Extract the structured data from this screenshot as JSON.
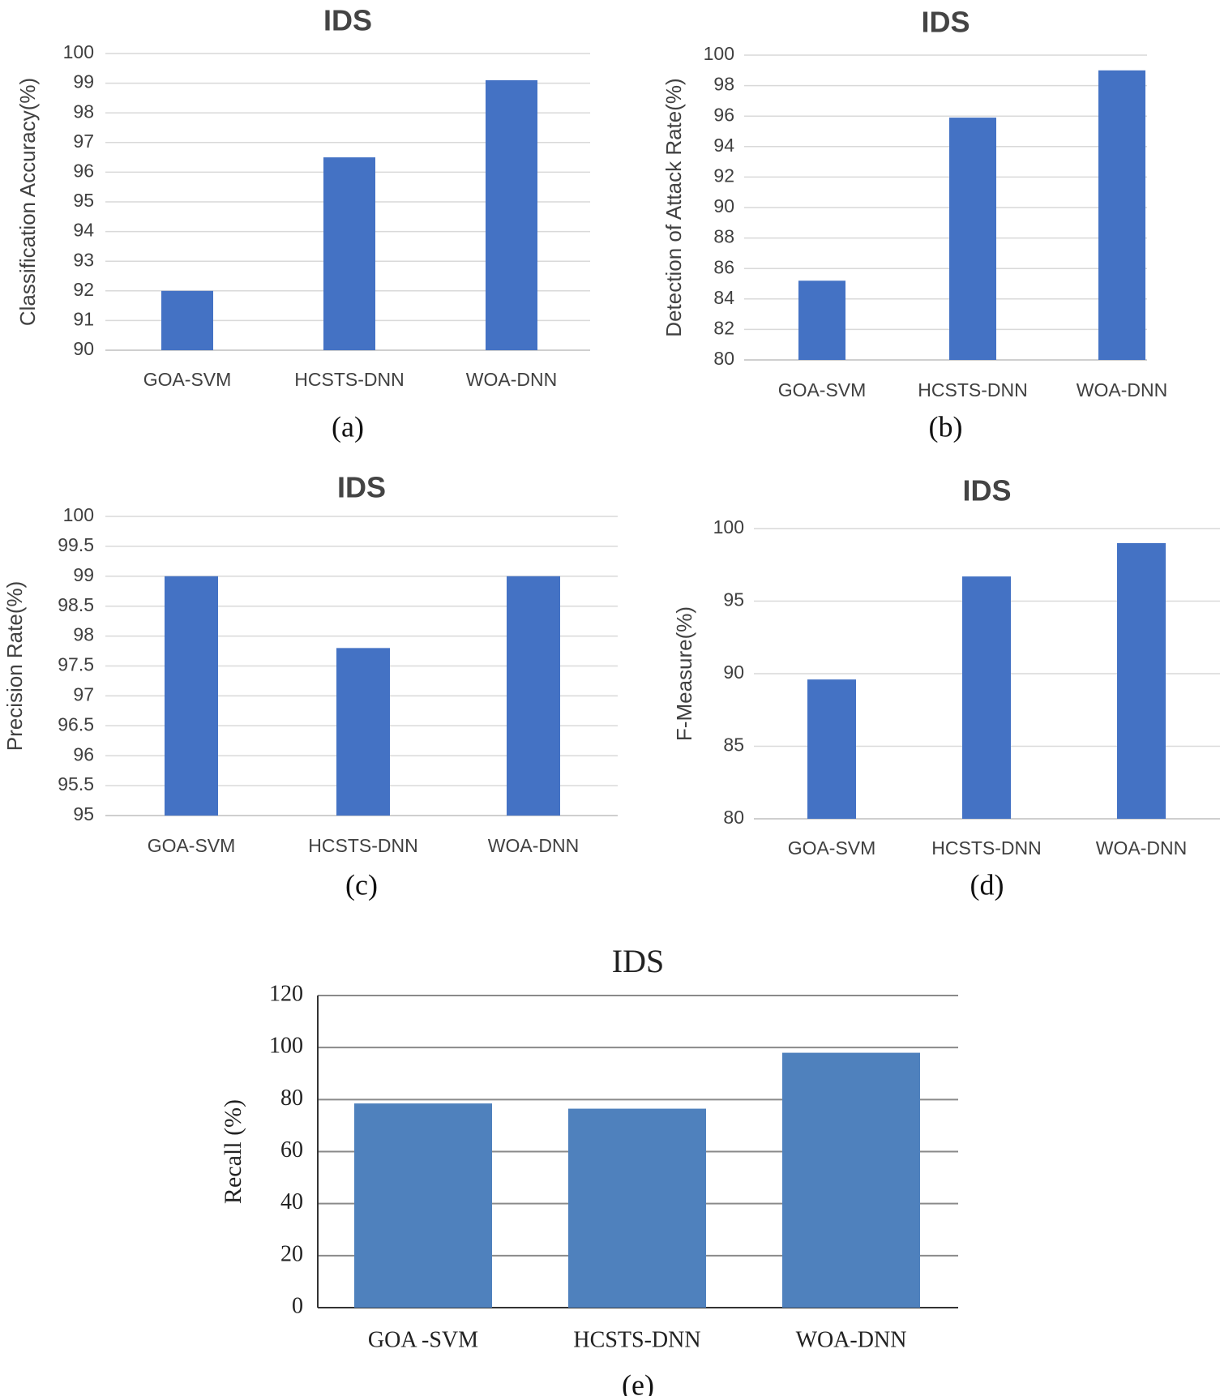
{
  "bar_color": "#4472C4",
  "bar_color_e": "#4F81BD",
  "grid_color": "#d9d9d9",
  "chart_data": [
    {
      "type": "bar",
      "panel": "(a)",
      "title": "IDS",
      "ylabel": "Classification Accuracy(%)",
      "xlabel": "",
      "categories": [
        "GOA-SVM",
        "HCSTS-DNN",
        "WOA-DNN"
      ],
      "values": [
        92,
        96.5,
        99.1
      ],
      "ylim": [
        90,
        100
      ],
      "yticks": [
        "90",
        "91",
        "92",
        "93",
        "94",
        "95",
        "96",
        "97",
        "98",
        "99",
        "100"
      ],
      "grid": true,
      "legend": "none"
    },
    {
      "type": "bar",
      "panel": "(b)",
      "title": "IDS",
      "ylabel": "Detection of Attack Rate(%)",
      "xlabel": "",
      "categories": [
        "GOA-SVM",
        "HCSTS-DNN",
        "WOA-DNN"
      ],
      "values": [
        85.2,
        95.9,
        99
      ],
      "ylim": [
        80,
        100
      ],
      "yticks": [
        "80",
        "82",
        "84",
        "86",
        "88",
        "90",
        "92",
        "94",
        "96",
        "98",
        "100"
      ],
      "grid": true,
      "legend": "none"
    },
    {
      "type": "bar",
      "panel": "(c)",
      "title": "IDS",
      "ylabel": "Precision Rate(%)",
      "xlabel": "",
      "categories": [
        "GOA-SVM",
        "HCSTS-DNN",
        "WOA-DNN"
      ],
      "values": [
        99,
        97.8,
        99
      ],
      "ylim": [
        95,
        100
      ],
      "yticks": [
        "95",
        "95.5",
        "96",
        "96.5",
        "97",
        "97.5",
        "98",
        "98.5",
        "99",
        "99.5",
        "100"
      ],
      "grid": true,
      "legend": "none"
    },
    {
      "type": "bar",
      "panel": "(d)",
      "title": "IDS",
      "ylabel": "F-Measure(%)",
      "xlabel": "",
      "categories": [
        "GOA-SVM",
        "HCSTS-DNN",
        "WOA-DNN"
      ],
      "values": [
        89.6,
        96.7,
        99
      ],
      "ylim": [
        80,
        100
      ],
      "yticks": [
        "80",
        "85",
        "90",
        "95",
        "100"
      ],
      "grid": true,
      "legend": "none"
    },
    {
      "type": "bar",
      "panel": "(e)",
      "title": "IDS",
      "ylabel": "Recall (%)",
      "xlabel": "",
      "categories": [
        "GOA -SVM",
        "HCSTS-DNN",
        "WOA-DNN"
      ],
      "values": [
        78.5,
        76.5,
        98
      ],
      "ylim": [
        0,
        120
      ],
      "yticks": [
        "0",
        "20",
        "40",
        "60",
        "80",
        "100",
        "120"
      ],
      "grid": true,
      "legend": "none"
    }
  ]
}
